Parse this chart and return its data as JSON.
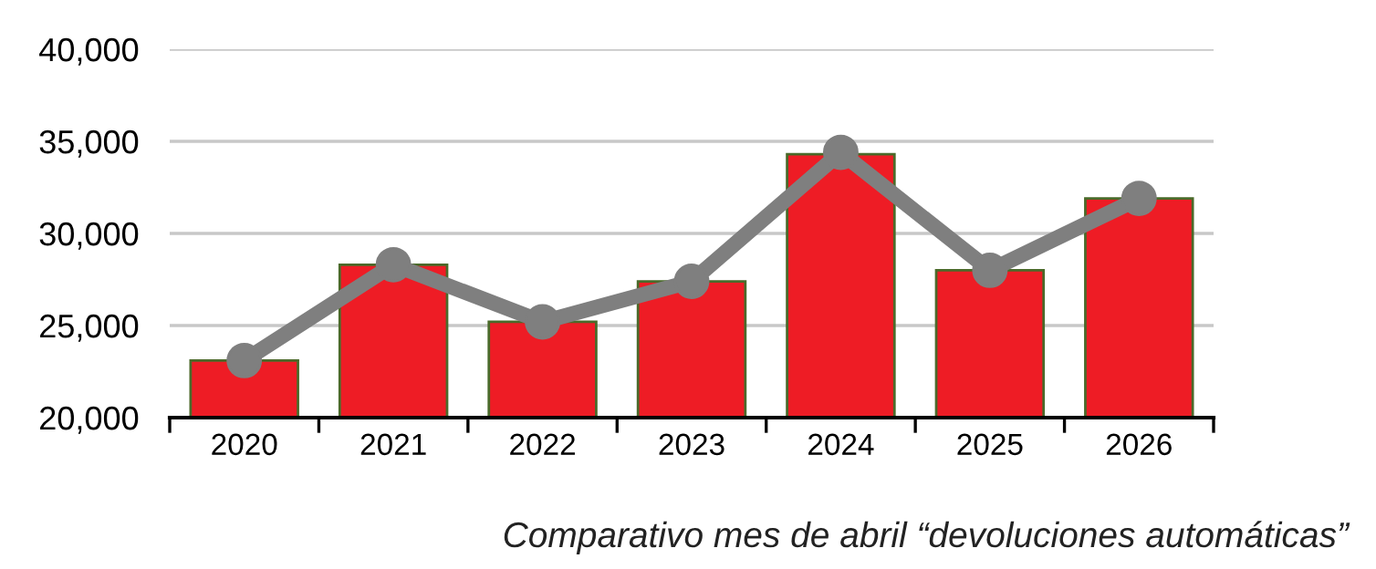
{
  "chart_data": {
    "type": "bar",
    "categories": [
      "2020",
      "2021",
      "2022",
      "2023",
      "2024",
      "2025",
      "2026"
    ],
    "series": [
      {
        "color": "#ee1c25",
        "values": [
          23100,
          28300,
          25200,
          27400,
          34300,
          28000,
          31900
        ]
      },
      {
        "type": "line",
        "color": "#7f7f7f",
        "values": [
          23100,
          28300,
          25200,
          27400,
          34400,
          28000,
          31900
        ],
        "marker": "circle",
        "line_style": "solid"
      }
    ],
    "ylim": [
      20000,
      40000
    ],
    "yticks": [
      {
        "value": 20000,
        "label": "20,000"
      },
      {
        "value": 25000,
        "label": "25,000"
      },
      {
        "value": 30000,
        "label": "30,000"
      },
      {
        "value": 35000,
        "label": "35,000"
      },
      {
        "value": 40000,
        "label": "40,000"
      }
    ],
    "grid": "y",
    "annotations": [
      "Comparativo mes de abril “devoluciones automáticas”"
    ]
  }
}
